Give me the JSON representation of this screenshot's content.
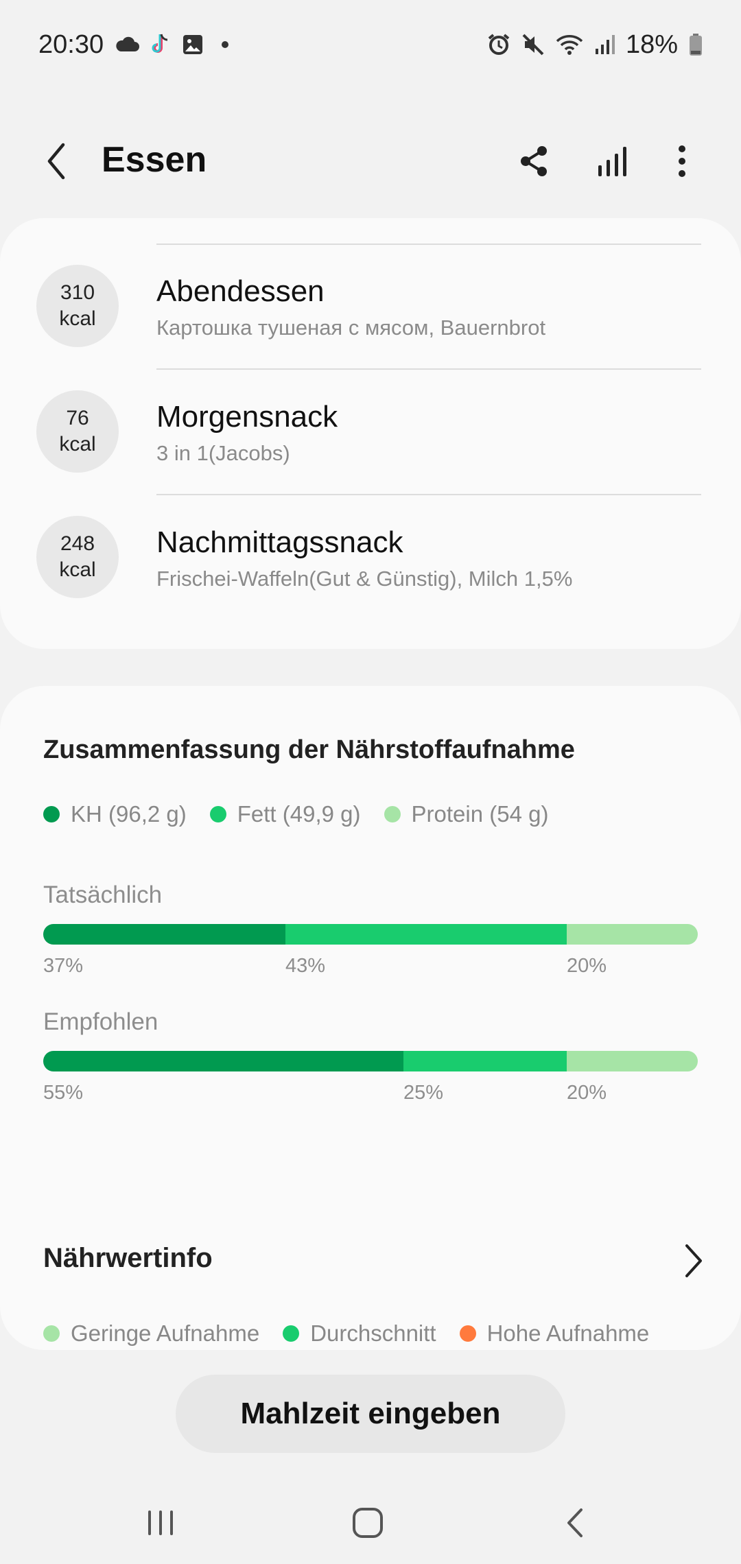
{
  "status_bar": {
    "time": "20:30",
    "battery": "18%",
    "left_icons": [
      "cloud-icon",
      "tiktok-icon",
      "image-icon"
    ],
    "right_icons": [
      "alarm-icon",
      "mute-icon",
      "wifi-icon",
      "signal-icon",
      "battery-icon"
    ]
  },
  "app_bar": {
    "title": "Essen",
    "actions": [
      "share-icon",
      "bar-chart-icon",
      "more-icon"
    ]
  },
  "meals": [
    {
      "kcal_value": "310",
      "kcal_unit": "kcal",
      "name": "Abendessen",
      "items": "Картошка тушеная с мясом, Bauernbrot"
    },
    {
      "kcal_value": "76",
      "kcal_unit": "kcal",
      "name": "Morgensnack",
      "items": "3 in 1(Jacobs)"
    },
    {
      "kcal_value": "248",
      "kcal_unit": "kcal",
      "name": "Nachmittagssnack",
      "items": "Frischei-Waffeln(Gut & Günstig), Milch 1,5%"
    }
  ],
  "summary": {
    "title": "Zusammenfassung der Nährstoffaufnahme",
    "legend": [
      {
        "label": "KH (96,2 g)",
        "color": "#019a50"
      },
      {
        "label": "Fett (49,9 g)",
        "color": "#19cc6e"
      },
      {
        "label": "Protein (54 g)",
        "color": "#a6e4a6"
      }
    ],
    "actual": {
      "label": "Tatsächlich",
      "percent_labels": [
        "37%",
        "43%",
        "20%"
      ],
      "values": [
        37,
        43,
        20
      ]
    },
    "recommended": {
      "label": "Empfohlen",
      "percent_labels": [
        "55%",
        "25%",
        "20%"
      ],
      "values": [
        55,
        25,
        20
      ]
    }
  },
  "nutrition_info": {
    "title": "Nährwertinfo",
    "legend": [
      {
        "label": "Geringe Aufnahme",
        "color": "#a6e4a6"
      },
      {
        "label": "Durchschnitt",
        "color": "#19cc6e"
      },
      {
        "label": "Hohe Aufnahme",
        "color": "#ff7a3d"
      }
    ]
  },
  "primary_button": {
    "label": "Mahlzeit eingeben"
  },
  "nav_bar": {
    "buttons": [
      "recents-icon",
      "home-icon",
      "back-icon"
    ]
  }
}
